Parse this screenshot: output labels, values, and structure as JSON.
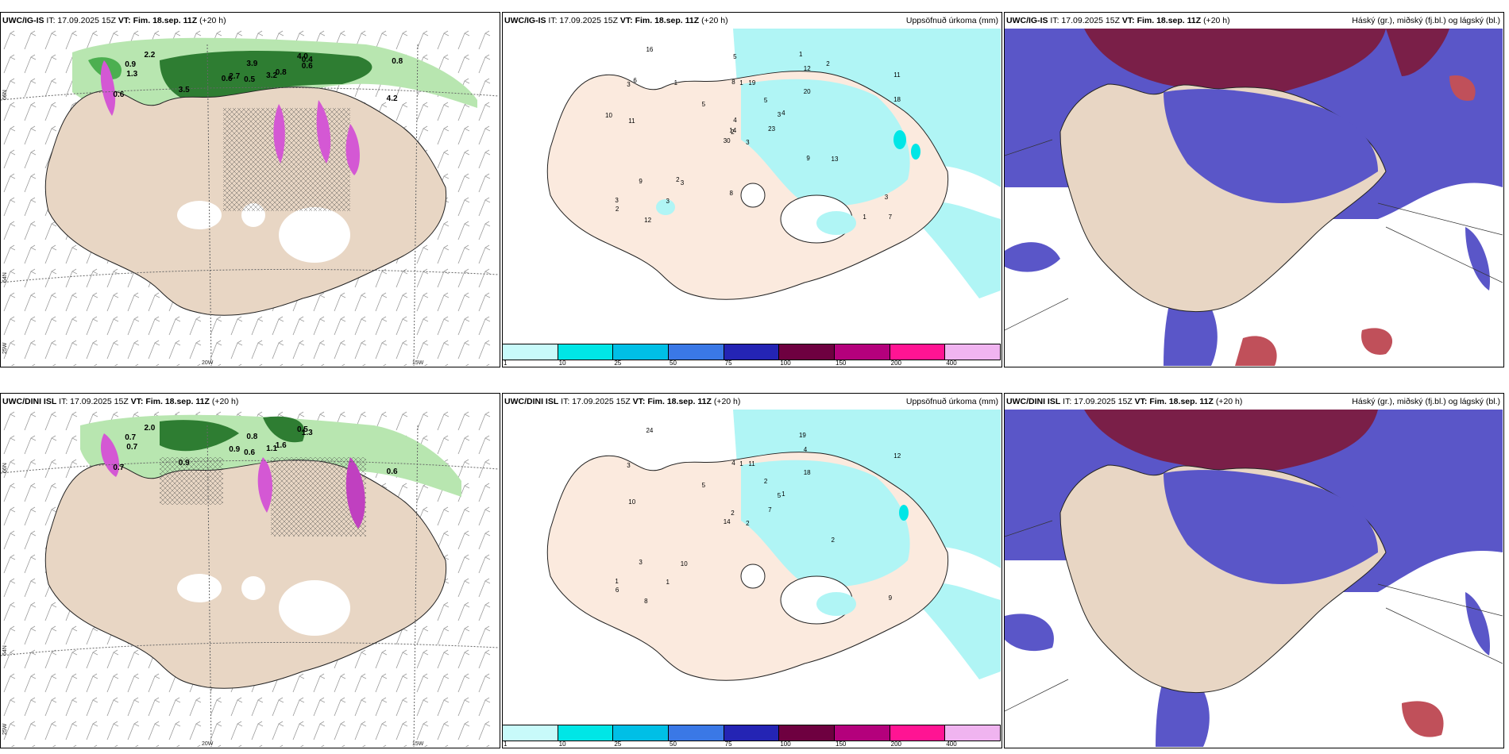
{
  "panels": [
    {
      "model": "UWC/IG-IS",
      "it": "IT: 17.09.2025 15Z",
      "vt_label": "VT:",
      "vt": "Fim. 18.sep. 11Z",
      "lead": "(+20 h)",
      "right_title": ""
    },
    {
      "model": "UWC/IG-IS",
      "it": "IT: 17.09.2025 15Z",
      "vt_label": "VT:",
      "vt": "Fim. 18.sep. 11Z",
      "lead": "(+20 h)",
      "right_title": "Uppsöfnuð úrkoma (mm)"
    },
    {
      "model": "UWC/IG-IS",
      "it": "IT: 17.09.2025 15Z",
      "vt_label": "VT:",
      "vt": "Fim. 18.sep. 11Z",
      "lead": "(+20 h)",
      "right_title": "Háský (gr.), miðský (fj.bl.) og lágský (bl.)"
    },
    {
      "model": "UWC/DINI ISL",
      "it": "IT: 17.09.2025 15Z",
      "vt_label": "VT:",
      "vt": "Fim. 18.sep. 11Z",
      "lead": "(+20 h)",
      "right_title": ""
    },
    {
      "model": "UWC/DINI ISL",
      "it": "IT: 17.09.2025 15Z",
      "vt_label": "VT:",
      "vt": "Fim. 18.sep. 11Z",
      "lead": "(+20 h)",
      "right_title": "Uppsöfnuð úrkoma (mm)"
    },
    {
      "model": "UWC/DINI ISL",
      "it": "IT: 17.09.2025 15Z",
      "vt_label": "VT:",
      "vt": "Fim. 18.sep. 11Z",
      "lead": "(+20 h)",
      "right_title": "Háský (gr.), miðský (fj.bl.) og lágský (bl.)"
    }
  ],
  "colorbar": {
    "labels": [
      "1",
      "10",
      "25",
      "50",
      "75",
      "100",
      "150",
      "200",
      "400"
    ],
    "colors": [
      "#c8fafa",
      "#00e6e6",
      "#00bfe6",
      "#3a78e6",
      "#2424b4",
      "#6e0040",
      "#b4007c",
      "#ff1493",
      "#f0b4f0"
    ]
  },
  "axis_labels": {
    "lat66": "66N",
    "lat64": "64N",
    "lon25": "25W",
    "lon20": "20W",
    "lon15": "15W"
  },
  "wind_labels_top": [
    "0.5",
    "0.9",
    "2.7",
    "0.6",
    "0.8",
    "3.5",
    "4.0",
    "3.9",
    "0.4",
    "3.2",
    "2.2",
    "4.2",
    "1.3",
    "0.8",
    "0.6",
    "0.6"
  ],
  "wind_labels_bottom": [
    "0.6",
    "0.7",
    "0.9",
    "0.7",
    "1.6",
    "0.9",
    "0.5",
    "0.8",
    "1.3",
    "1.1",
    "2.0",
    "0.6",
    "0.7"
  ],
  "precip_labels_top": [
    "3",
    "3",
    "2",
    "3",
    "3",
    "3",
    "1",
    "19",
    "12",
    "23",
    "16",
    "7",
    "11",
    "11",
    "30",
    "20",
    "12",
    "8",
    "5",
    "9",
    "5",
    "2",
    "3",
    "1",
    "4",
    "13",
    "6",
    "5",
    "10",
    "9",
    "18",
    "14",
    "8",
    "4",
    "1",
    "2",
    "2",
    "1",
    "3"
  ],
  "precip_labels_bottom": [
    "2",
    "3",
    "2",
    "1",
    "5",
    "10",
    "19",
    "11",
    "4",
    "7",
    "24",
    "9",
    "10",
    "12",
    "14",
    "18",
    "8",
    "4",
    "2",
    "3",
    "5",
    "6",
    "1",
    "1",
    "1",
    "2"
  ]
}
